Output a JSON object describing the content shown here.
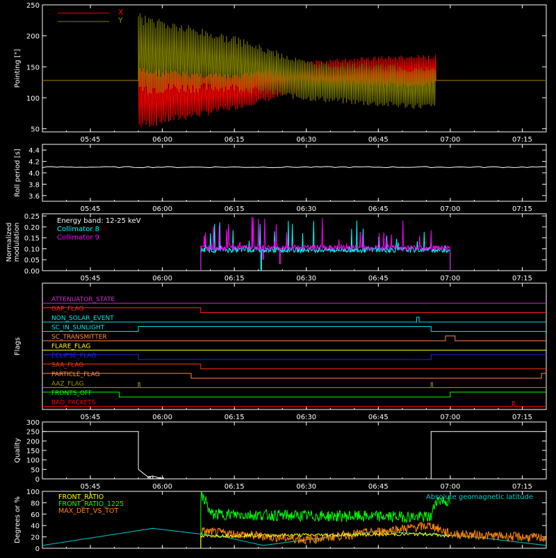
{
  "x_axis": {
    "ticks": [
      "05:45",
      "06:00",
      "06:15",
      "06:30",
      "06:45",
      "07:00",
      "07:15"
    ],
    "xlim": [
      "05:35",
      "07:20"
    ]
  },
  "panels": {
    "pointing": {
      "ylabel": "Pointing [\"]",
      "yticks": [
        "50",
        "100",
        "150",
        "200",
        "250"
      ]
    },
    "roll": {
      "ylabel": "Roll period [s]",
      "yticks": [
        "3.6",
        "3.8",
        "4.0",
        "4.2",
        "4.4"
      ]
    },
    "modulation": {
      "ylabel_line1": "Normalized",
      "ylabel_line2": "modulation",
      "yticks": [
        "0.00",
        "0.05",
        "0.10",
        "0.15",
        "0.20",
        "0.25"
      ],
      "energy_band": "Energy band: 12-25 keV"
    },
    "flags": {
      "ylabel": "Flags"
    },
    "quality": {
      "ylabel": "Quality",
      "yticks": [
        "0",
        "50",
        "100",
        "150",
        "200",
        "250",
        "300"
      ]
    },
    "ratio": {
      "ylabel": "Degrees or %",
      "yticks": [
        "0",
        "20",
        "40",
        "60",
        "80",
        "100"
      ]
    }
  },
  "chart_data": [
    {
      "type": "line",
      "ylabel": "Pointing [\"]",
      "ylim": [
        45,
        250
      ],
      "series": [
        {
          "name": "X",
          "color": "#ff0000",
          "baseline": 128,
          "envelope_x": [
            "05:55",
            "06:15",
            "06:30",
            "06:45",
            "06:57"
          ],
          "envelope_upper": [
            150,
            138,
            160,
            168,
            170
          ],
          "envelope_lower": [
            48,
            80,
            110,
            115,
            118
          ]
        },
        {
          "name": "Y",
          "color": "#808000",
          "baseline": 128,
          "envelope_x": [
            "05:55",
            "06:15",
            "06:30",
            "06:45",
            "06:57"
          ],
          "envelope_upper": [
            238,
            200,
            160,
            155,
            150
          ],
          "envelope_lower": [
            105,
            110,
            95,
            85,
            80
          ]
        }
      ]
    },
    {
      "type": "line",
      "ylabel": "Roll period [s]",
      "ylim": [
        3.5,
        4.5
      ],
      "series": [
        {
          "name": "",
          "color": "#ffffff",
          "x": [
            "05:35",
            "07:20"
          ],
          "y": [
            4.1,
            4.1
          ]
        }
      ]
    },
    {
      "type": "line",
      "ylabel": "Normalized modulation",
      "ylim": [
        0,
        0.25
      ],
      "annotation": "Energy band: 12-25 keV",
      "series": [
        {
          "name": "Collimator 8",
          "color": "#00ffff",
          "x_start": "06:08",
          "x_end": "07:00",
          "typical": 0.09,
          "max": 0.23
        },
        {
          "name": "Collimator 9",
          "color": "#ff00ff",
          "x_start": "06:08",
          "x_end": "07:00",
          "typical": 0.1,
          "max": 0.25
        }
      ]
    },
    {
      "type": "line",
      "ylabel": "Flags",
      "series": [
        {
          "name": "ATTENUATOR_STATE",
          "color": "#cc33cc",
          "steps": [
            [
              "05:35",
              0
            ]
          ]
        },
        {
          "name": "GAP_FLAG",
          "color": "#ff2222",
          "steps": [
            [
              "05:35",
              1
            ],
            [
              "06:08",
              0
            ]
          ]
        },
        {
          "name": "NON_SOLAR_EVENT",
          "color": "#00e5e5",
          "steps": [
            [
              "05:35",
              0
            ],
            [
              "06:53",
              1
            ],
            [
              "06:53.5",
              0
            ]
          ]
        },
        {
          "name": "SC_IN_SUNLIGHT",
          "color": "#00e5e5",
          "steps": [
            [
              "05:35",
              0
            ],
            [
              "05:55",
              1
            ],
            [
              "06:56",
              0
            ]
          ]
        },
        {
          "name": "SC_TRANSMITTER",
          "color": "#ff8844",
          "steps": [
            [
              "05:35",
              0
            ],
            [
              "06:59",
              1
            ],
            [
              "07:01",
              0
            ]
          ]
        },
        {
          "name": "FLARE_FLAG",
          "color": "#ffff00",
          "steps": [
            [
              "05:35",
              0
            ]
          ]
        },
        {
          "name": "ECLIPSE_FLAG",
          "color": "#2222ff",
          "steps": [
            [
              "05:35",
              1
            ],
            [
              "05:55",
              0
            ],
            [
              "06:56",
              1
            ]
          ]
        },
        {
          "name": "SAA_FLAG",
          "color": "#ff3300",
          "steps": [
            [
              "05:35",
              1
            ],
            [
              "06:08",
              0
            ]
          ]
        },
        {
          "name": "PARTICLE_FLAG",
          "color": "#ff8844",
          "steps": [
            [
              "05:35",
              1
            ],
            [
              "06:06",
              0
            ],
            [
              "07:19",
              1
            ]
          ]
        },
        {
          "name": "AAZ_FLAG",
          "color": "#999900",
          "steps": [
            [
              "05:35",
              0
            ],
            [
              "05:55",
              1
            ],
            [
              "05:55.3",
              0
            ],
            [
              "06:56",
              1
            ],
            [
              "06:56.3",
              0
            ]
          ]
        },
        {
          "name": "FRONTS_OFF",
          "color": "#00ff00",
          "steps": [
            [
              "05:35",
              1
            ],
            [
              "05:51",
              0
            ],
            [
              "07:00",
              1
            ]
          ]
        },
        {
          "name": "BAD_PACKETS",
          "color": "#ff0000",
          "steps": [
            [
              "05:35",
              0
            ],
            [
              "07:13",
              1
            ],
            [
              "07:13.3",
              0
            ]
          ]
        }
      ]
    },
    {
      "type": "line",
      "ylabel": "Quality",
      "ylim": [
        0,
        300
      ],
      "series": [
        {
          "name": "",
          "color": "#ffffff",
          "x": [
            "05:35",
            "05:55",
            "05:55",
            "05:57",
            "05:58",
            "05:59",
            "06:00",
            "06:56",
            "06:56",
            "07:20"
          ],
          "y": [
            250,
            250,
            50,
            10,
            15,
            8,
            0,
            0,
            250,
            250
          ]
        }
      ]
    },
    {
      "type": "line",
      "ylabel": "Degrees or %",
      "ylim": [
        0,
        100
      ],
      "annotation": "Absolute geomagnetic latitude",
      "series": [
        {
          "name": "FRONT_RATIO",
          "color": "#ffff00",
          "x": [
            "06:08",
            "06:10",
            "06:56",
            "07:00"
          ],
          "y": [
            20,
            22,
            25,
            20
          ]
        },
        {
          "name": "FRONT_RATIO_1225",
          "color": "#00ff00",
          "x": [
            "06:08",
            "06:09",
            "06:10",
            "06:30",
            "06:56",
            "06:57",
            "07:00"
          ],
          "y": [
            90,
            85,
            60,
            57,
            55,
            85,
            82
          ]
        },
        {
          "name": "MAX_DET_VS_TOT",
          "color": "#ff8800",
          "x": [
            "06:08",
            "06:30",
            "06:56",
            "07:00",
            "07:20"
          ],
          "y": [
            30,
            15,
            40,
            25,
            18
          ]
        },
        {
          "name": "Absolute geomagnetic latitude",
          "color": "#00cccc",
          "x": [
            "05:35",
            "05:58",
            "06:13",
            "06:21",
            "06:30",
            "06:45",
            "07:05",
            "07:20"
          ],
          "y": [
            5,
            35,
            20,
            5,
            15,
            30,
            20,
            5
          ]
        }
      ]
    }
  ]
}
